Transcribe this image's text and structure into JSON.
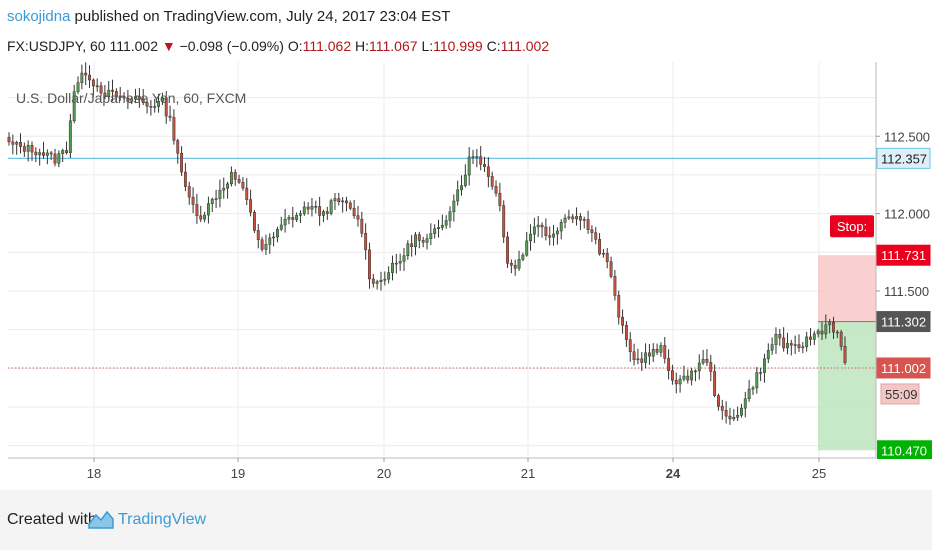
{
  "header": {
    "username": "sokojidna",
    "published_text": " published on TradingView.com, July 24, 2017 23:04 EST",
    "symbol": "FX:USDJPY, 60",
    "last": "111.002",
    "change": "−0.098 (−0.09%)",
    "o_label": "O:",
    "o_value": "111.062",
    "h_label": "H:",
    "h_value": "111.067",
    "l_label": "L:",
    "l_value": "110.999",
    "c_label": "C:",
    "c_value": "111.002"
  },
  "footer": {
    "created_with": "Created with",
    "brand": "TradingView"
  },
  "colors": {
    "up": "#4f9e4f",
    "down": "#c8503c",
    "accent": "#3a9bd5",
    "stop": "#e8001c",
    "target": "#00b300"
  },
  "chart_data": {
    "type": "candlestick",
    "title": "U.S. Dollar/Japanese Yen, 60, FXCM",
    "x_ticks": [
      "18",
      "19",
      "20",
      "21",
      "24",
      "25"
    ],
    "x_ticks_bold": [
      "24"
    ],
    "y_ticks": [
      "112.500",
      "112.000",
      "111.500"
    ],
    "ylim": [
      110.42,
      112.98
    ],
    "horizontal_line": 112.357,
    "current_price": 111.002,
    "countdown": "55:09",
    "position": {
      "stop_label": "Stop:",
      "stop": 111.731,
      "entry": 111.302,
      "target": 110.47
    },
    "price_labels": [
      {
        "value": 112.357,
        "text": "112.357",
        "kind": "line"
      },
      {
        "value": 111.731,
        "text": "111.731",
        "kind": "stop"
      },
      {
        "value": 111.302,
        "text": "111.302",
        "kind": "entry"
      },
      {
        "value": 111.002,
        "text": "111.002",
        "kind": "current"
      }
    ],
    "target_label": "110.470",
    "close_path": [
      [
        0,
        112.45
      ],
      [
        8,
        112.4
      ],
      [
        12,
        112.35
      ],
      [
        15,
        112.42
      ],
      [
        17,
        112.8
      ],
      [
        20,
        112.92
      ],
      [
        22,
        112.85
      ],
      [
        25,
        112.78
      ],
      [
        28,
        112.76
      ],
      [
        30,
        112.72
      ],
      [
        33,
        112.75
      ],
      [
        36,
        112.7
      ],
      [
        40,
        112.72
      ],
      [
        42,
        112.6
      ],
      [
        44,
        112.4
      ],
      [
        46,
        112.15
      ],
      [
        48,
        112.05
      ],
      [
        50,
        111.98
      ],
      [
        52,
        112.05
      ],
      [
        54,
        112.12
      ],
      [
        56,
        112.18
      ],
      [
        58,
        112.25
      ],
      [
        60,
        112.2
      ],
      [
        62,
        112.08
      ],
      [
        64,
        111.9
      ],
      [
        66,
        111.78
      ],
      [
        68,
        111.82
      ],
      [
        70,
        111.88
      ],
      [
        72,
        111.95
      ],
      [
        74,
        111.98
      ],
      [
        76,
        112.0
      ],
      [
        78,
        112.05
      ],
      [
        80,
        112.02
      ],
      [
        82,
        112.0
      ],
      [
        84,
        112.06
      ],
      [
        86,
        112.08
      ],
      [
        88,
        112.05
      ],
      [
        90,
        112.0
      ],
      [
        92,
        111.9
      ],
      [
        94,
        111.6
      ],
      [
        96,
        111.55
      ],
      [
        98,
        111.6
      ],
      [
        100,
        111.65
      ],
      [
        102,
        111.7
      ],
      [
        104,
        111.78
      ],
      [
        106,
        111.85
      ],
      [
        108,
        111.8
      ],
      [
        110,
        111.85
      ],
      [
        112,
        111.9
      ],
      [
        114,
        111.98
      ],
      [
        116,
        112.1
      ],
      [
        118,
        112.2
      ],
      [
        120,
        112.35
      ],
      [
        122,
        112.38
      ],
      [
        124,
        112.3
      ],
      [
        126,
        112.2
      ],
      [
        128,
        112.05
      ],
      [
        130,
        111.7
      ],
      [
        132,
        111.65
      ],
      [
        134,
        111.75
      ],
      [
        136,
        111.88
      ],
      [
        138,
        111.95
      ],
      [
        140,
        111.85
      ],
      [
        142,
        111.88
      ],
      [
        144,
        111.95
      ],
      [
        146,
        112.0
      ],
      [
        148,
        111.98
      ],
      [
        150,
        111.95
      ],
      [
        152,
        111.9
      ],
      [
        154,
        111.75
      ],
      [
        156,
        111.7
      ],
      [
        158,
        111.45
      ],
      [
        160,
        111.25
      ],
      [
        162,
        111.1
      ],
      [
        164,
        111.05
      ],
      [
        166,
        111.08
      ],
      [
        168,
        111.1
      ],
      [
        170,
        111.12
      ],
      [
        172,
        111.0
      ],
      [
        174,
        110.9
      ],
      [
        176,
        110.92
      ],
      [
        178,
        110.98
      ],
      [
        180,
        111.02
      ],
      [
        182,
        111.06
      ],
      [
        184,
        110.85
      ],
      [
        186,
        110.7
      ],
      [
        188,
        110.66
      ],
      [
        190,
        110.72
      ],
      [
        192,
        110.8
      ],
      [
        194,
        110.9
      ],
      [
        196,
        111.0
      ],
      [
        198,
        111.1
      ],
      [
        200,
        111.22
      ],
      [
        202,
        111.15
      ],
      [
        204,
        111.12
      ],
      [
        206,
        111.14
      ],
      [
        208,
        111.18
      ],
      [
        210,
        111.22
      ],
      [
        212,
        111.25
      ],
      [
        214,
        111.3
      ],
      [
        216,
        111.22
      ],
      [
        218,
        111.02
      ]
    ]
  }
}
